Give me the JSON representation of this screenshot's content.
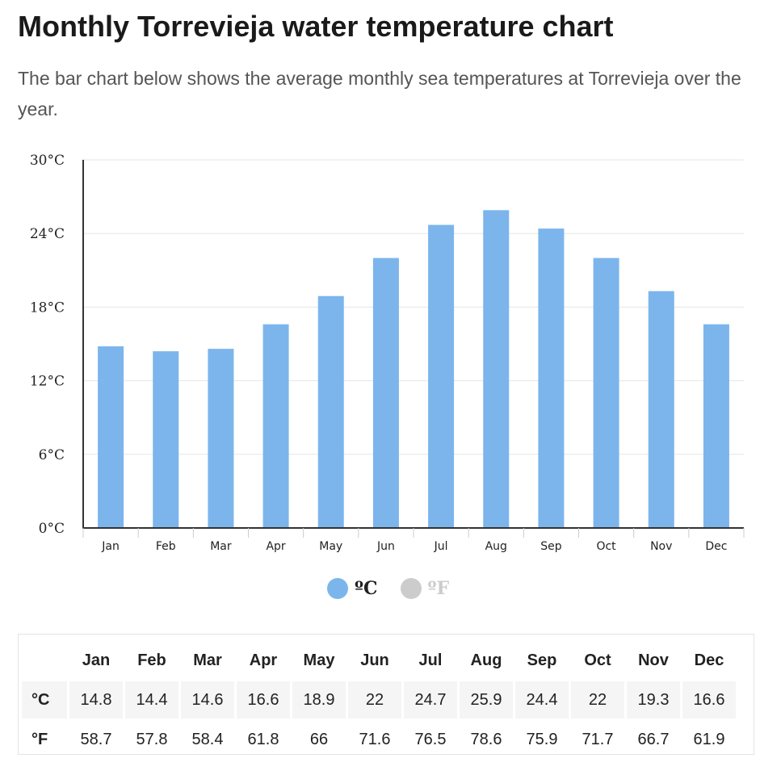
{
  "page": {
    "title": "Monthly Torrevieja water temperature chart",
    "subtitle": "The bar chart below shows the average monthly sea temperatures at Torrevieja over the year."
  },
  "colors": {
    "bar": "#7cb5ec",
    "inactive": "#cccccc",
    "axis": "#333333",
    "grid": "#e6e6e6"
  },
  "chart_data": {
    "type": "bar",
    "categories": [
      "Jan",
      "Feb",
      "Mar",
      "Apr",
      "May",
      "Jun",
      "Jul",
      "Aug",
      "Sep",
      "Oct",
      "Nov",
      "Dec"
    ],
    "series": [
      {
        "name": "ºC",
        "values": [
          14.8,
          14.4,
          14.6,
          16.6,
          18.9,
          22,
          24.7,
          25.9,
          24.4,
          22,
          19.3,
          16.6
        ],
        "visible": true
      },
      {
        "name": "ºF",
        "values": [
          58.7,
          57.8,
          58.4,
          61.8,
          66,
          71.6,
          76.5,
          78.6,
          75.9,
          71.7,
          66.7,
          61.9
        ],
        "visible": false
      }
    ],
    "yticks": [
      "0°C",
      "6°C",
      "12°C",
      "18°C",
      "24°C",
      "30°C"
    ],
    "ylim": [
      0,
      30
    ],
    "grid": true,
    "legend": "bottom-center"
  },
  "legend": {
    "celsius": "ºC",
    "fahrenheit": "ºF"
  },
  "table": {
    "headers": [
      "Jan",
      "Feb",
      "Mar",
      "Apr",
      "May",
      "Jun",
      "Jul",
      "Aug",
      "Sep",
      "Oct",
      "Nov",
      "Dec"
    ],
    "rows": [
      {
        "label": "°C",
        "values": [
          "14.8",
          "14.4",
          "14.6",
          "16.6",
          "18.9",
          "22",
          "24.7",
          "25.9",
          "24.4",
          "22",
          "19.3",
          "16.6"
        ]
      },
      {
        "label": "°F",
        "values": [
          "58.7",
          "57.8",
          "58.4",
          "61.8",
          "66",
          "71.6",
          "76.5",
          "78.6",
          "75.9",
          "71.7",
          "66.7",
          "61.9"
        ]
      }
    ]
  }
}
